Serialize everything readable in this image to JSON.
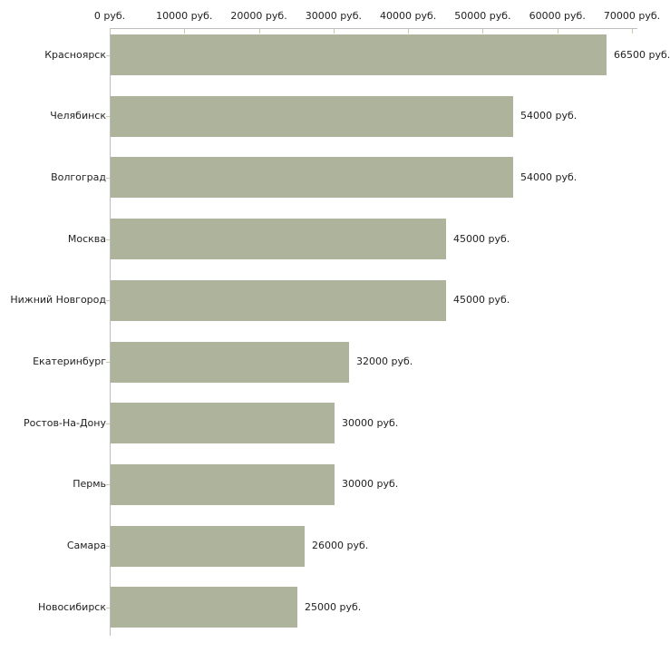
{
  "chart_data": {
    "type": "bar",
    "orientation": "horizontal",
    "title": "",
    "xlabel": "",
    "ylabel": "",
    "xlim": [
      0,
      70000
    ],
    "grid": false,
    "legend": false,
    "currency_suffix": "руб.",
    "categories": [
      "Красноярск",
      "Челябинск",
      "Волгоград",
      "Москва",
      "Нижний Новгород",
      "Екатеринбург",
      "Ростов-На-Дону",
      "Пермь",
      "Самара",
      "Новосибирск"
    ],
    "values": [
      66500,
      54000,
      54000,
      45000,
      45000,
      32000,
      30000,
      30000,
      26000,
      25000
    ],
    "value_labels": [
      "66500 руб.",
      "54000 руб.",
      "54000 руб.",
      "45000 руб.",
      "45000 руб.",
      "32000 руб.",
      "30000 руб.",
      "30000 руб.",
      "26000 руб.",
      "25000 руб."
    ],
    "x_ticks": [
      0,
      10000,
      20000,
      30000,
      40000,
      50000,
      60000,
      70000
    ],
    "x_tick_labels": [
      "0 руб.",
      "10000 руб.",
      "20000 руб.",
      "30000 руб.",
      "40000 руб.",
      "50000 руб.",
      "60000 руб.",
      "70000 руб."
    ],
    "colors": {
      "bar": "#aeb49b",
      "axis_line": "#bdbdbd",
      "tick_mark": "#c9c9ad",
      "text": "#222222",
      "background": "#ffffff"
    }
  }
}
